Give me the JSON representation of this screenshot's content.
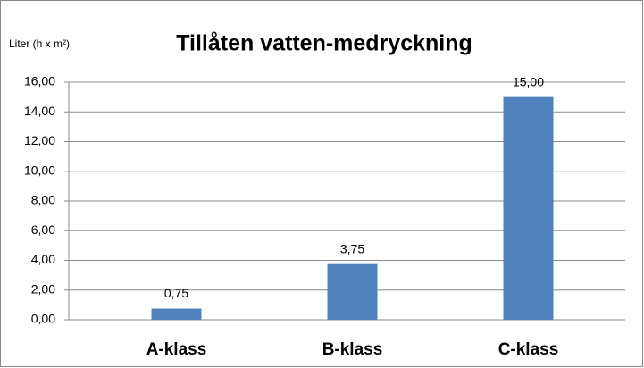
{
  "chart_data": {
    "type": "bar",
    "title": "Tillåten vatten-medryckning",
    "y_label": "Liter (h x m²)",
    "categories": [
      "A-klass",
      "B-klass",
      "C-klass"
    ],
    "values": [
      0.75,
      3.75,
      15
    ],
    "value_labels": [
      "0,75",
      "3,75",
      "15,00"
    ],
    "color": "#4f81bd",
    "ylim": [
      0,
      16
    ],
    "yticks": [
      {
        "value": 0,
        "label": "0,00"
      },
      {
        "value": 2,
        "label": "2,00"
      },
      {
        "value": 4,
        "label": "4,00"
      },
      {
        "value": 6,
        "label": "6,00"
      },
      {
        "value": 8,
        "label": "8,00"
      },
      {
        "value": 10,
        "label": "10,00"
      },
      {
        "value": 12,
        "label": "12,00"
      },
      {
        "value": 14,
        "label": "14,00"
      },
      {
        "value": 16,
        "label": "16,00"
      }
    ],
    "grid": true
  }
}
